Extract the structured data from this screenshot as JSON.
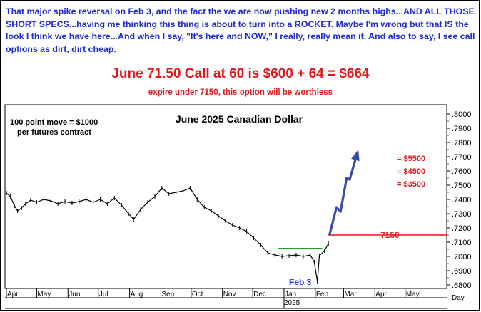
{
  "commentary": "That major spike reversal on Feb 3, and the fact the we are now pushing new 2 months highs...AND ALL THOSE SHORT SPECS...having me thinking this thing is about to turn into a ROCKET. Maybe I'm wrong but that IS the look I think we have here...And when I say, \"It's here and NOW,\" I really, really mean it. And also to say, I see call options as dirt, dirt cheap.",
  "trade": {
    "title": "June 71.50 Call at 60 is $600 + 64 = $664",
    "note": "expire under 7150, this option will be worthless"
  },
  "colors": {
    "commentary_text": "#1d2bd0",
    "red": "#e0171b",
    "green": "#21a121",
    "arrow": "#3a4aa8",
    "price": "#000000"
  },
  "chart_data": {
    "type": "line",
    "title": "June 2025 Canadian Dollar",
    "annotation_contract": "100 point move = $1000 per futures contract",
    "x_tick_labels": [
      "Apr",
      "May",
      "Jun",
      "Jul",
      "Aug",
      "Sep",
      "Oct",
      "Nov",
      "Dec",
      "Jan",
      "Feb",
      "Mar",
      "Apr",
      "May"
    ],
    "x_year_label": "2025",
    "x_axis_unit": "Day",
    "y_tick_labels": [
      ".8000",
      ".7900",
      ".7800",
      ".7700",
      ".7600",
      ".7500",
      ".7400",
      ".7300",
      ".7200",
      ".7100",
      ".7000",
      ".6900",
      ".6800"
    ],
    "ylim": [
      0.675,
      0.8045
    ],
    "grid": false,
    "series": [
      {
        "name": "",
        "x": [
          "2024-04-01",
          "2024-04-05",
          "2024-04-09",
          "2024-04-12",
          "2024-04-16",
          "2024-04-20",
          "2024-04-25",
          "2024-05-01",
          "2024-05-08",
          "2024-05-15",
          "2024-05-22",
          "2024-05-29",
          "2024-06-05",
          "2024-06-12",
          "2024-06-19",
          "2024-06-26",
          "2024-07-03",
          "2024-07-10",
          "2024-07-17",
          "2024-07-24",
          "2024-07-31",
          "2024-08-05",
          "2024-08-12",
          "2024-08-19",
          "2024-08-26",
          "2024-09-02",
          "2024-09-09",
          "2024-09-16",
          "2024-09-23",
          "2024-09-30",
          "2024-10-07",
          "2024-10-14",
          "2024-10-21",
          "2024-10-28",
          "2024-11-04",
          "2024-11-11",
          "2024-11-18",
          "2024-11-25",
          "2024-12-02",
          "2024-12-09",
          "2024-12-16",
          "2024-12-23",
          "2024-12-30",
          "2025-01-06",
          "2025-01-13",
          "2025-01-20",
          "2025-01-27",
          "2025-01-31",
          "2025-02-03",
          "2025-02-05",
          "2025-02-10",
          "2025-02-14"
        ],
        "y": [
          0.7445,
          0.742,
          0.7355,
          0.732,
          0.734,
          0.737,
          0.7395,
          0.738,
          0.74,
          0.739,
          0.737,
          0.7385,
          0.7375,
          0.7385,
          0.74,
          0.738,
          0.74,
          0.737,
          0.741,
          0.736,
          0.73,
          0.726,
          0.733,
          0.738,
          0.742,
          0.748,
          0.744,
          0.745,
          0.746,
          0.748,
          0.74,
          0.7345,
          0.732,
          0.7285,
          0.725,
          0.722,
          0.72,
          0.7175,
          0.713,
          0.708,
          0.7025,
          0.701,
          0.7,
          0.7005,
          0.701,
          0.7,
          0.701,
          0.696,
          0.6825,
          0.7005,
          0.704,
          0.709
        ]
      },
      {
        "name": "",
        "x": [
          "2025-02-15",
          "2025-02-22",
          "2025-02-26",
          "2025-03-04",
          "2025-03-07",
          "2025-03-15"
        ],
        "y": [
          0.715,
          0.7345,
          0.7315,
          0.755,
          0.754,
          0.7735
        ]
      }
    ],
    "annotations": [
      {
        "type": "hline",
        "label": "7150",
        "y": 0.715,
        "color": "#e0171b"
      },
      {
        "type": "segment",
        "y": 0.7055,
        "from": "2024-12-26",
        "to": "2025-02-08",
        "color": "#21a121"
      },
      {
        "type": "label",
        "text": "Feb 3",
        "color": "#1d2bd0"
      },
      {
        "type": "label",
        "text": "= $5500",
        "color": "#e0171b"
      },
      {
        "type": "label",
        "text": "= $4500",
        "color": "#e0171b"
      },
      {
        "type": "label",
        "text": "= $3500",
        "color": "#e0171b"
      }
    ]
  }
}
